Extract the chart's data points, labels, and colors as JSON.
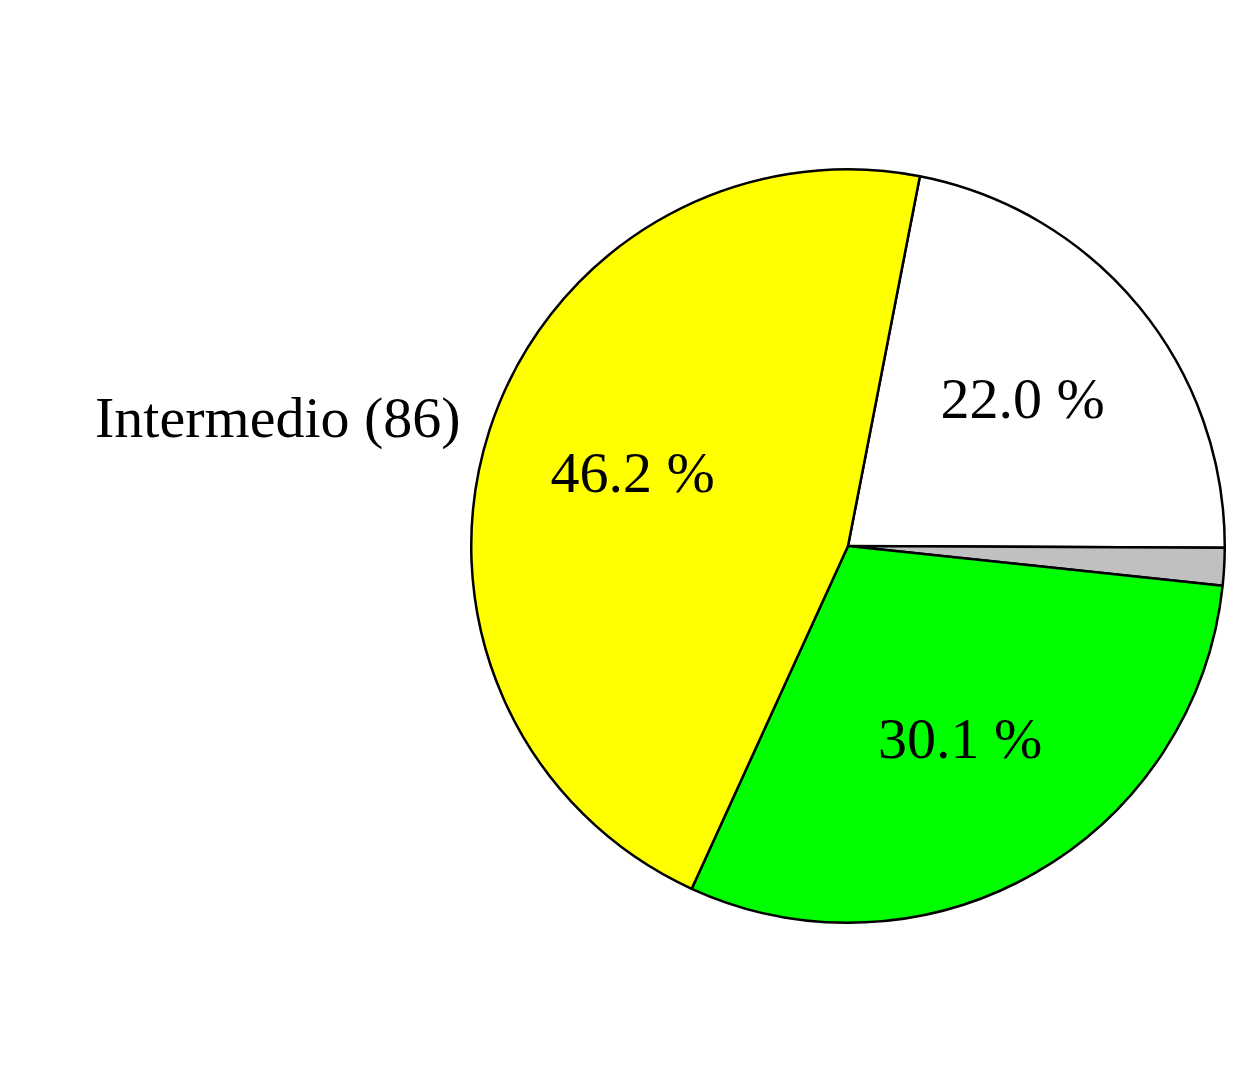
{
  "chart_data": {
    "type": "pie",
    "categories": [
      null,
      null,
      null,
      "Intermedio (86)"
    ],
    "values": [
      22.0,
      1.6,
      30.1,
      46.2
    ],
    "colors": [
      "#ffffff",
      "#c0c0c0",
      "#00ff00",
      "#ffff00"
    ],
    "value_labels": [
      "22.0 %",
      null,
      "30.1 %",
      "46.2 %"
    ],
    "legend": false
  }
}
